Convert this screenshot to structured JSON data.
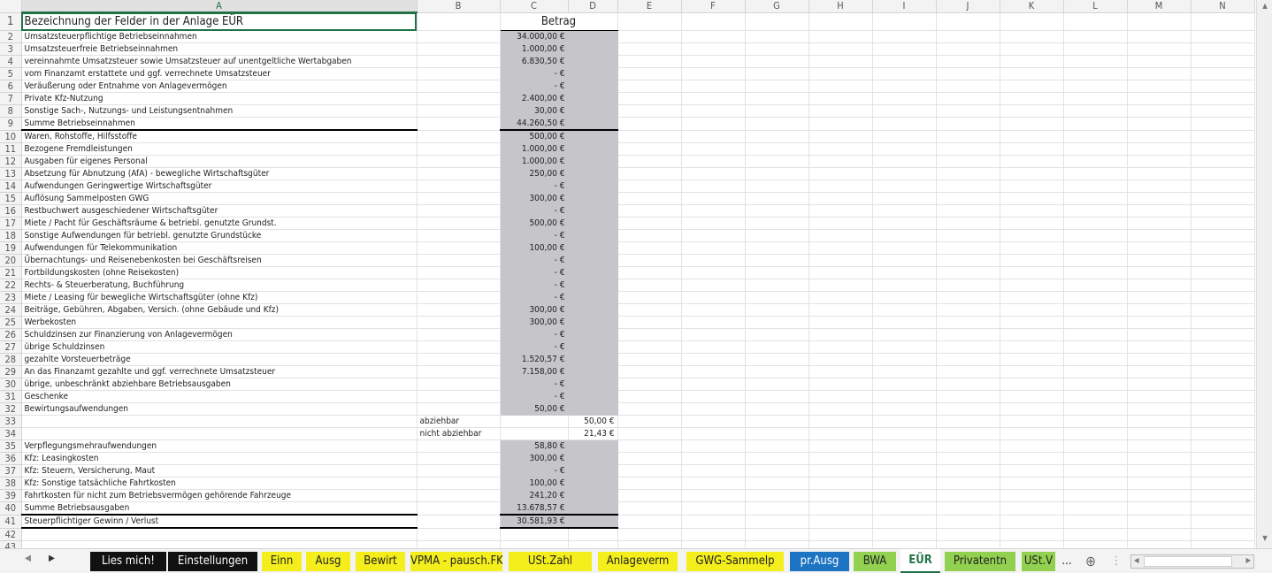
{
  "columns": [
    "A",
    "B",
    "C",
    "D",
    "E",
    "F",
    "G",
    "H",
    "I",
    "J",
    "K",
    "L",
    "M",
    "N"
  ],
  "selected_column": "A",
  "header_row": {
    "label": "Bezeichnung der Felder in der Anlage EÜR",
    "amount_header": "Betrag"
  },
  "rows": [
    {
      "n": 2,
      "label": "Umsatzsteuerpflichtige Betriebseinnahmen",
      "c": "34.000,00 €"
    },
    {
      "n": 3,
      "label": "Umsatzsteuerfreie Betriebseinnahmen",
      "c": "1.000,00 €"
    },
    {
      "n": 4,
      "label": "vereinnahmte Umsatzsteuer sowie Umsatzsteuer auf unentgeltliche Wertabgaben",
      "c": "6.830,50 €"
    },
    {
      "n": 5,
      "label": "vom Finanzamt erstattete und ggf. verrechnete Umsatzsteuer",
      "c": "-   €"
    },
    {
      "n": 6,
      "label": "Veräußerung oder Entnahme von Anlagevermögen",
      "c": "-   €"
    },
    {
      "n": 7,
      "label": "Private Kfz-Nutzung",
      "c": "2.400,00 €"
    },
    {
      "n": 8,
      "label": "Sonstige Sach-, Nutzungs- und Leistungsentnahmen",
      "c": "30,00 €"
    },
    {
      "n": 9,
      "label": "Summe Betriebseinnahmen",
      "c": "44.260,50 €"
    },
    {
      "n": 10,
      "label": "Waren, Rohstoffe, Hilfsstoffe",
      "c": "500,00 €"
    },
    {
      "n": 11,
      "label": "Bezogene Fremdleistungen",
      "c": "1.000,00 €"
    },
    {
      "n": 12,
      "label": "Ausgaben für eigenes Personal",
      "c": "1.000,00 €"
    },
    {
      "n": 13,
      "label": "Absetzung für Abnutzung (AfA) - bewegliche Wirtschaftsgüter",
      "c": "250,00 €"
    },
    {
      "n": 14,
      "label": "Aufwendungen Geringwertige Wirtschaftsgüter",
      "c": "-   €"
    },
    {
      "n": 15,
      "label": "Auflösung Sammelposten GWG",
      "c": "300,00 €"
    },
    {
      "n": 16,
      "label": "Restbuchwert ausgeschiedener Wirtschaftsgüter",
      "c": "-   €"
    },
    {
      "n": 17,
      "label": "Miete / Pacht für Geschäftsräume & betriebl. genutzte Grundst.",
      "c": "500,00 €"
    },
    {
      "n": 18,
      "label": "Sonstige Aufwendungen für betriebl. genutzte Grundstücke",
      "c": "-   €"
    },
    {
      "n": 19,
      "label": "Aufwendungen für Telekommunikation",
      "c": "100,00 €"
    },
    {
      "n": 20,
      "label": "Übernachtungs- und Reisenebenkosten bei Geschäftsreisen",
      "c": "-   €"
    },
    {
      "n": 21,
      "label": "Fortbildungskosten (ohne Reisekosten)",
      "c": "-   €"
    },
    {
      "n": 22,
      "label": "Rechts- & Steuerberatung, Buchführung",
      "c": "-   €"
    },
    {
      "n": 23,
      "label": "Miete / Leasing für bewegliche Wirtschaftsgüter (ohne Kfz)",
      "c": "-   €"
    },
    {
      "n": 24,
      "label": "Beiträge, Gebühren, Abgaben, Versich. (ohne Gebäude und Kfz)",
      "c": "300,00 €"
    },
    {
      "n": 25,
      "label": "Werbekosten",
      "c": "300,00 €"
    },
    {
      "n": 26,
      "label": "Schuldzinsen zur Finanzierung von Anlagevermögen",
      "c": "-   €"
    },
    {
      "n": 27,
      "label": "übrige Schuldzinsen",
      "c": "-   €"
    },
    {
      "n": 28,
      "label": "gezahlte Vorsteuerbeträge",
      "c": "1.520,57 €"
    },
    {
      "n": 29,
      "label": "An das Finanzamt gezahlte und ggf. verrechnete Umsatzsteuer",
      "c": "7.158,00 €"
    },
    {
      "n": 30,
      "label": "übrige, unbeschränkt abziehbare Betriebsausgaben",
      "c": "-   €"
    },
    {
      "n": 31,
      "label": "Geschenke",
      "c": "-   €"
    },
    {
      "n": 32,
      "label": "Bewirtungsaufwendungen",
      "c": "50,00 €"
    },
    {
      "n": 33,
      "label": "",
      "b": "abziehbar",
      "c": "",
      "d": "50,00 €"
    },
    {
      "n": 34,
      "label": "",
      "b": "nicht abziehbar",
      "c": "",
      "d": "21,43 €"
    },
    {
      "n": 35,
      "label": "Verpflegungsmehraufwendungen",
      "c": "58,80 €"
    },
    {
      "n": 36,
      "label": "Kfz: Leasingkosten",
      "c": "300,00 €"
    },
    {
      "n": 37,
      "label": "Kfz: Steuern, Versicherung, Maut",
      "c": "-   €"
    },
    {
      "n": 38,
      "label": "Kfz: Sonstige tatsächliche Fahrtkosten",
      "c": "100,00 €"
    },
    {
      "n": 39,
      "label": "Fahrtkosten für nicht zum Betriebsvermögen gehörende Fahrzeuge",
      "c": "241,20 €"
    },
    {
      "n": 40,
      "label": "Summe Betriebsausgaben",
      "c": "13.678,57 €"
    },
    {
      "n": 41,
      "label": "Steuerpflichtiger Gewinn / Verlust",
      "c": "30.581,93 €"
    },
    {
      "n": 42,
      "label": "",
      "c": ""
    },
    {
      "n": 43,
      "label": "",
      "c": ""
    }
  ],
  "sheet_tabs": [
    {
      "label": "Lies mich!",
      "bg": "#111111",
      "fg": "#ffffff"
    },
    {
      "label": "Einstellungen",
      "bg": "#111111",
      "fg": "#ffffff"
    },
    {
      "label": "Einn",
      "bg": "#f4ee1c",
      "fg": "#222222"
    },
    {
      "label": "Ausg",
      "bg": "#f4ee1c",
      "fg": "#222222"
    },
    {
      "label": "Bewirt",
      "bg": "#f4ee1c",
      "fg": "#222222"
    },
    {
      "label": "VPMA - pausch.FK",
      "bg": "#f4ee1c",
      "fg": "#222222"
    },
    {
      "label": "USt.Zahl",
      "bg": "#f4ee1c",
      "fg": "#222222"
    },
    {
      "label": "Anlageverm",
      "bg": "#f4ee1c",
      "fg": "#222222"
    },
    {
      "label": "GWG-Sammelp",
      "bg": "#f4ee1c",
      "fg": "#222222"
    },
    {
      "label": "pr.Ausg",
      "bg": "#1c74c2",
      "fg": "#ffffff"
    },
    {
      "label": "BWA",
      "bg": "#92d050",
      "fg": "#222222"
    },
    {
      "label": "EÜR",
      "bg": "#ffffff",
      "fg": "#217346",
      "active": true
    },
    {
      "label": "Privatentn",
      "bg": "#92d050",
      "fg": "#222222"
    },
    {
      "label": "USt.V",
      "bg": "#92d050",
      "fg": "#222222"
    }
  ],
  "tab_more": "...",
  "colors": {
    "accent": "#217346",
    "input_fill": "#c6c6ca"
  }
}
